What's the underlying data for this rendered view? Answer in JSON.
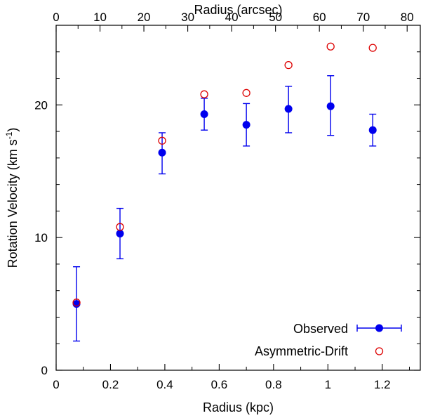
{
  "chart_data": {
    "type": "scatter",
    "xlabel": "Radius (kpc)",
    "x2label": "Radius (arcsec)",
    "ylabel": "Rotation Velocity (km s",
    "ylabel_sup": "-1",
    "ylabel_close": ")",
    "xlim": [
      0,
      1.34
    ],
    "x2lim": [
      0,
      83
    ],
    "ylim": [
      0,
      26
    ],
    "xticks": [
      0,
      0.2,
      0.4,
      0.6,
      0.8,
      1,
      1.2
    ],
    "xtick_labels": [
      "0",
      "0.2",
      "0.4",
      "0.6",
      "0.8",
      "1",
      "1.2"
    ],
    "x2ticks": [
      0,
      10,
      20,
      30,
      40,
      50,
      60,
      70,
      80
    ],
    "x2tick_labels": [
      "0",
      "10",
      "20",
      "30",
      "40",
      "50",
      "60",
      "70",
      "80"
    ],
    "yticks": [
      0,
      10,
      20
    ],
    "ytick_labels": [
      "0",
      "10",
      "20"
    ],
    "grid": false,
    "legend_position": "bottom-right",
    "series": [
      {
        "name": "Observed",
        "color": "#0000ee",
        "marker": "filled-circle",
        "x": [
          0.075,
          0.235,
          0.39,
          0.545,
          0.7,
          0.855,
          1.01,
          1.165
        ],
        "y": [
          5.0,
          10.3,
          16.4,
          19.3,
          18.5,
          19.7,
          19.9,
          18.1
        ],
        "err_low": [
          2.8,
          1.9,
          1.6,
          1.2,
          1.6,
          1.8,
          2.2,
          1.2
        ],
        "err_high": [
          2.8,
          1.9,
          1.5,
          1.2,
          1.6,
          1.7,
          2.3,
          1.2
        ]
      },
      {
        "name": "Asymmetric-Drift",
        "color": "#dd0000",
        "marker": "open-circle",
        "x": [
          0.075,
          0.235,
          0.39,
          0.545,
          0.7,
          0.855,
          1.01,
          1.165
        ],
        "y": [
          5.1,
          10.8,
          17.3,
          20.8,
          20.9,
          23.0,
          24.4,
          24.3
        ]
      }
    ]
  }
}
